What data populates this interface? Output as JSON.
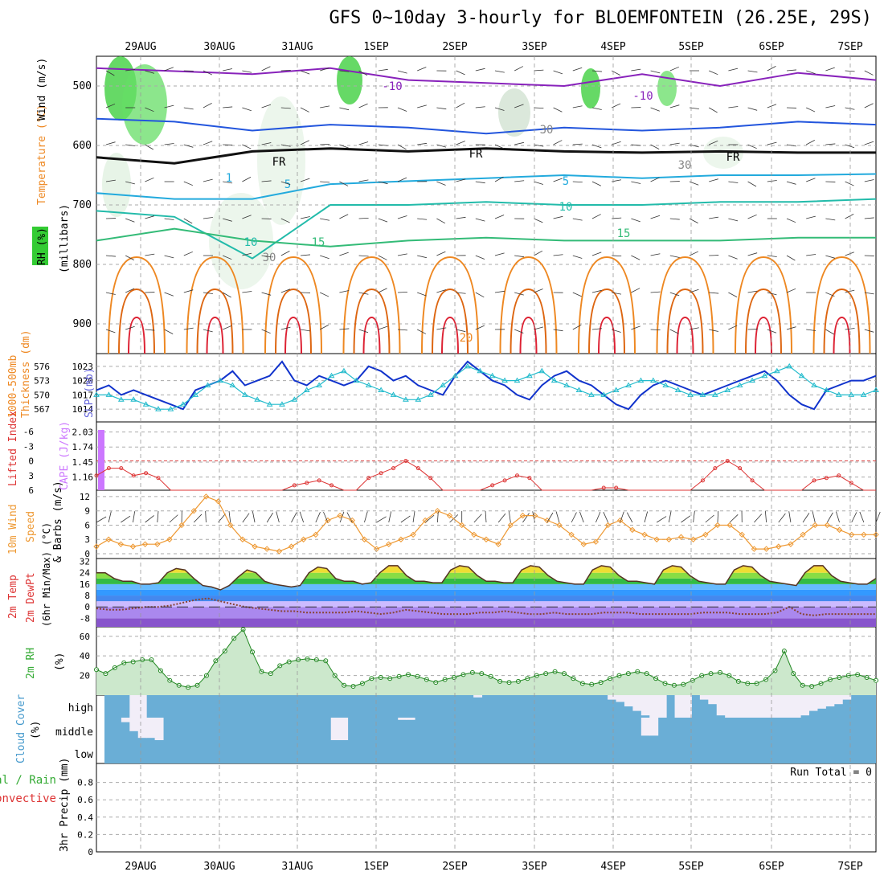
{
  "title": "GFS 0~10day 3-hourly for BLOEMFONTEIN (26.25E, 29S)",
  "date_labels": [
    "29AUG",
    "30AUG",
    "31AUG",
    "1SEP",
    "2SEP",
    "3SEP",
    "4SEP",
    "5SEP",
    "6SEP",
    "7SEP"
  ],
  "run_total": "Run Total = 0",
  "colors": {
    "rh_green": "#33cc33",
    "cloud_blue": "#6aaed6",
    "temp_orange": "#ee8822",
    "slp_blue": "#1133cc",
    "thickness_cyan": "#22bbcc",
    "li_red": "#dd3333",
    "cape_purple": "#cc77ff",
    "wind_orange": "#ee9933"
  },
  "chart_data": [
    {
      "type": "heatmap",
      "panel": "upper-air cross-section",
      "ylabel": "(millibars)",
      "ylabels_left": [
        "RH (%)",
        "Temperature (°C)",
        "Wind (m/s)"
      ],
      "y_ticks": [
        500,
        600,
        700,
        800,
        900
      ],
      "contour_labels": [
        "-10",
        "-10",
        "FR",
        "FR",
        "FR",
        "5",
        "5",
        "10",
        "10",
        "15",
        "15",
        "20",
        "30",
        "30",
        "30",
        "1"
      ],
      "isotherms": [
        {
          "name": "-10",
          "level_mb": [
            470,
            475,
            480,
            470,
            490,
            495,
            500,
            480,
            500,
            478,
            490
          ]
        },
        {
          "name": "-5",
          "level_mb": [
            555,
            560,
            575,
            565,
            570,
            580,
            570,
            575,
            570,
            560,
            565
          ]
        },
        {
          "name": "FR",
          "level_mb": [
            620,
            630,
            610,
            605,
            610,
            605,
            610,
            612,
            610,
            612,
            612
          ]
        },
        {
          "name": "5",
          "level_mb": [
            680,
            690,
            690,
            665,
            660,
            655,
            650,
            655,
            650,
            650,
            648
          ]
        },
        {
          "name": "10",
          "level_mb": [
            710,
            720,
            790,
            700,
            700,
            695,
            700,
            700,
            695,
            695,
            690
          ]
        },
        {
          "name": "15",
          "level_mb": [
            760,
            740,
            760,
            770,
            760,
            755,
            760,
            760,
            760,
            755,
            755
          ]
        }
      ]
    },
    {
      "type": "line",
      "panel": "1000-500mb thickness & SLP",
      "ylabels_left": [
        "1000-500mb",
        "Thickness (dm)"
      ],
      "ylabels_right": [
        "SLP (mb)"
      ],
      "thickness_ticks": [
        567,
        570,
        573,
        576
      ],
      "slp_ticks": [
        1014,
        1017,
        1020,
        1023
      ],
      "series": [
        {
          "name": "SLP (mb)",
          "values": [
            1018,
            1019,
            1017,
            1018,
            1017,
            1016,
            1015,
            1014,
            1018,
            1019,
            1020,
            1022,
            1019,
            1020,
            1021,
            1024,
            1020,
            1019,
            1021,
            1020,
            1019,
            1020,
            1023,
            1022,
            1020,
            1021,
            1019,
            1018,
            1017,
            1021,
            1024,
            1022,
            1020,
            1019,
            1017,
            1016,
            1019,
            1021,
            1022,
            1020,
            1019,
            1017,
            1015,
            1014,
            1017,
            1019,
            1020,
            1019,
            1018,
            1017,
            1018,
            1019,
            1020,
            1021,
            1022,
            1020,
            1017,
            1015,
            1014,
            1018,
            1019,
            1020,
            1020,
            1021
          ]
        },
        {
          "name": "1000-500mb Thickness (dm)",
          "values": [
            570,
            570,
            569,
            569,
            568,
            567,
            567,
            568,
            570,
            572,
            573,
            572,
            570,
            569,
            568,
            568,
            569,
            571,
            572,
            574,
            575,
            573,
            572,
            571,
            570,
            569,
            569,
            570,
            572,
            574,
            576,
            575,
            574,
            573,
            573,
            574,
            575,
            573,
            572,
            571,
            570,
            570,
            571,
            572,
            573,
            573,
            572,
            571,
            570,
            570,
            570,
            571,
            572,
            573,
            574,
            575,
            576,
            574,
            572,
            571,
            570,
            570,
            570,
            571
          ]
        }
      ]
    },
    {
      "type": "line",
      "panel": "Lifted Index & CAPE",
      "ylabels_left": [
        "Lifted Index"
      ],
      "ylabels_right": [
        "CAPE (J/kg)"
      ],
      "li_ticks": [
        "-6",
        "-3",
        "0",
        "3",
        "6"
      ],
      "cape_ticks": [
        1.16,
        1.45,
        1.74,
        2.03
      ],
      "series": [
        {
          "name": "Lifted Index",
          "values": [
            3,
            1.5,
            1.5,
            3,
            2.5,
            3.5,
            6,
            6,
            6,
            6,
            6,
            6,
            6,
            6,
            6,
            6,
            5,
            4.5,
            4,
            5,
            6,
            6,
            3.5,
            2.5,
            1.5,
            0,
            1.5,
            3.5,
            6,
            6,
            6,
            6,
            5,
            4,
            3,
            3.5,
            6,
            6,
            6,
            6,
            6,
            5.5,
            5.5,
            6,
            6,
            6,
            6,
            6,
            6,
            4,
            1.5,
            0,
            1.5,
            4,
            6,
            6,
            6,
            6,
            4,
            3.5,
            3,
            4.5,
            6,
            6
          ]
        },
        {
          "name": "CAPE (J/kg)",
          "values": [
            2.03
          ]
        }
      ]
    },
    {
      "type": "line",
      "panel": "10m Wind Speed & Barbs",
      "ylabels_left": [
        "10m Wind",
        "Speed",
        "& Barbs (m/s)"
      ],
      "y_ticks": [
        0,
        3,
        6,
        9,
        12
      ],
      "series": [
        {
          "name": "10m Wind Speed",
          "values": [
            1.5,
            3,
            2,
            1.5,
            2,
            2,
            3,
            6,
            9,
            12,
            11,
            6,
            3,
            1.5,
            1,
            0.5,
            1.5,
            3,
            4,
            7,
            8,
            7,
            3,
            1,
            2,
            3,
            4,
            7,
            9,
            8,
            6,
            4,
            3,
            2,
            6,
            8,
            8,
            7,
            6,
            4,
            2,
            2.5,
            6,
            7,
            5,
            4,
            3,
            3,
            3.5,
            3,
            4,
            6,
            6,
            4,
            1,
            1,
            1.5,
            2,
            4,
            6,
            6,
            5,
            4,
            4,
            4
          ]
        }
      ]
    },
    {
      "type": "area",
      "panel": "2m Temp & DewPt",
      "ylabels_left": [
        "2m Temp",
        "2m DewPt",
        "(6hr Min/Max) (°C)"
      ],
      "y_ticks": [
        -8,
        0,
        8,
        16,
        24,
        32
      ],
      "series": [
        {
          "name": "2m Temp",
          "values": [
            24,
            24,
            20,
            18,
            18,
            16,
            16,
            17,
            24,
            27,
            26,
            20,
            15,
            14,
            12,
            15,
            21,
            26,
            24,
            18,
            16,
            15,
            14,
            15,
            24,
            28,
            27,
            20,
            18,
            18,
            16,
            17,
            24,
            29,
            29,
            22,
            18,
            18,
            17,
            17,
            26,
            29,
            28,
            22,
            18,
            18,
            17,
            17,
            26,
            29,
            28,
            22,
            18,
            17,
            16,
            16,
            26,
            29,
            28,
            22,
            18,
            18,
            17,
            16,
            26,
            29,
            28,
            22,
            18,
            17,
            16,
            16,
            26,
            29,
            28,
            22,
            18,
            17,
            16,
            15,
            24,
            29,
            29,
            22,
            18,
            17,
            16,
            16,
            20
          ]
        },
        {
          "name": "2m DewPt",
          "values": [
            -1,
            -2,
            -2,
            -1,
            0,
            0,
            1,
            3,
            5,
            6,
            4,
            2,
            0,
            -1,
            -2,
            -3,
            -3,
            -4,
            -4,
            -4,
            -4,
            -3,
            -4,
            -5,
            -4,
            -2,
            -3,
            -4,
            -5,
            -5,
            -5,
            -4,
            -4,
            -3,
            -4,
            -5,
            -5,
            -4,
            -5,
            -5,
            -5,
            -4,
            -4,
            -4,
            -5,
            -5,
            -5,
            -5,
            -5,
            -4,
            -4,
            -4,
            -5,
            -5,
            -5,
            -4,
            0,
            -5,
            -6,
            -5,
            -5,
            -5,
            -5,
            -5
          ]
        }
      ]
    },
    {
      "type": "area",
      "panel": "2m RH",
      "ylabels_left": [
        "2m RH",
        "(%)"
      ],
      "y_ticks": [
        20,
        40,
        60
      ],
      "series": [
        {
          "name": "2m RH",
          "values": [
            26,
            22,
            28,
            33,
            34,
            36,
            36,
            25,
            15,
            10,
            8,
            10,
            20,
            35,
            45,
            58,
            67,
            44,
            24,
            22,
            30,
            34,
            36,
            37,
            36,
            35,
            20,
            10,
            9,
            12,
            17,
            18,
            17,
            19,
            21,
            19,
            16,
            13,
            16,
            18,
            21,
            23,
            22,
            19,
            14,
            13,
            14,
            17,
            20,
            22,
            24,
            22,
            17,
            12,
            11,
            13,
            17,
            20,
            22,
            24,
            22,
            17,
            12,
            10,
            11,
            15,
            20,
            22,
            23,
            20,
            14,
            12,
            12,
            16,
            25,
            45,
            22,
            10,
            9,
            12,
            16,
            18,
            20,
            21,
            18,
            15
          ]
        }
      ]
    },
    {
      "type": "area",
      "panel": "Cloud Cover",
      "ylabels_left": [
        "Cloud Cover",
        "(%)"
      ],
      "y_ticks": [
        "low",
        "middle",
        "high"
      ],
      "series": [
        {
          "name": "high",
          "values": [
            0,
            0,
            0,
            100,
            100,
            0,
            0,
            0,
            0,
            0,
            0,
            0,
            0,
            0,
            0,
            0,
            0,
            0,
            0,
            0,
            0,
            0,
            0,
            0,
            0,
            0,
            0,
            0,
            0,
            0,
            0,
            0,
            0,
            0,
            0,
            0,
            0,
            0,
            0,
            0,
            0,
            0,
            0,
            0,
            10,
            0,
            0,
            0,
            0,
            0,
            0,
            0,
            0,
            0,
            0,
            0,
            0,
            0,
            0,
            0,
            20,
            30,
            50,
            70,
            90,
            100,
            100,
            0,
            100,
            100,
            0,
            20,
            40,
            90,
            100,
            100,
            100,
            100,
            100,
            100,
            100,
            100,
            100,
            90,
            70,
            60,
            50,
            40,
            20,
            0,
            0,
            0
          ]
        },
        {
          "name": "middle",
          "values": [
            0,
            0,
            20,
            60,
            90,
            90,
            100,
            0,
            0,
            0,
            0,
            0,
            0,
            0,
            0,
            0,
            0,
            0,
            0,
            0,
            0,
            0,
            0,
            0,
            0,
            0,
            0,
            100,
            100,
            0,
            0,
            0,
            0,
            0,
            0,
            10,
            10,
            0,
            0,
            0,
            0,
            0,
            0,
            0,
            0,
            0,
            0,
            0,
            0,
            0,
            0,
            0,
            0,
            0,
            0,
            0,
            0,
            0,
            0,
            0,
            0,
            0,
            0,
            0,
            80,
            80,
            0,
            0,
            0,
            0,
            0,
            0,
            0,
            0,
            0,
            0,
            0,
            0,
            0,
            0,
            0,
            0,
            0,
            0,
            0,
            0,
            0,
            0,
            0,
            0,
            0,
            0
          ]
        },
        {
          "name": "low",
          "values": [
            0
          ]
        }
      ]
    },
    {
      "type": "bar",
      "panel": "3hr Precip",
      "ylabels_left": [
        "3hr Precip (mm)"
      ],
      "series_labels": [
        "Total / Rain",
        "Convective"
      ],
      "y_ticks": [
        0,
        0.2,
        0.4,
        0.6,
        0.8
      ],
      "series": [
        {
          "name": "Total / Rain",
          "values": [
            0
          ]
        },
        {
          "name": "Convective",
          "values": [
            0
          ]
        }
      ]
    }
  ]
}
